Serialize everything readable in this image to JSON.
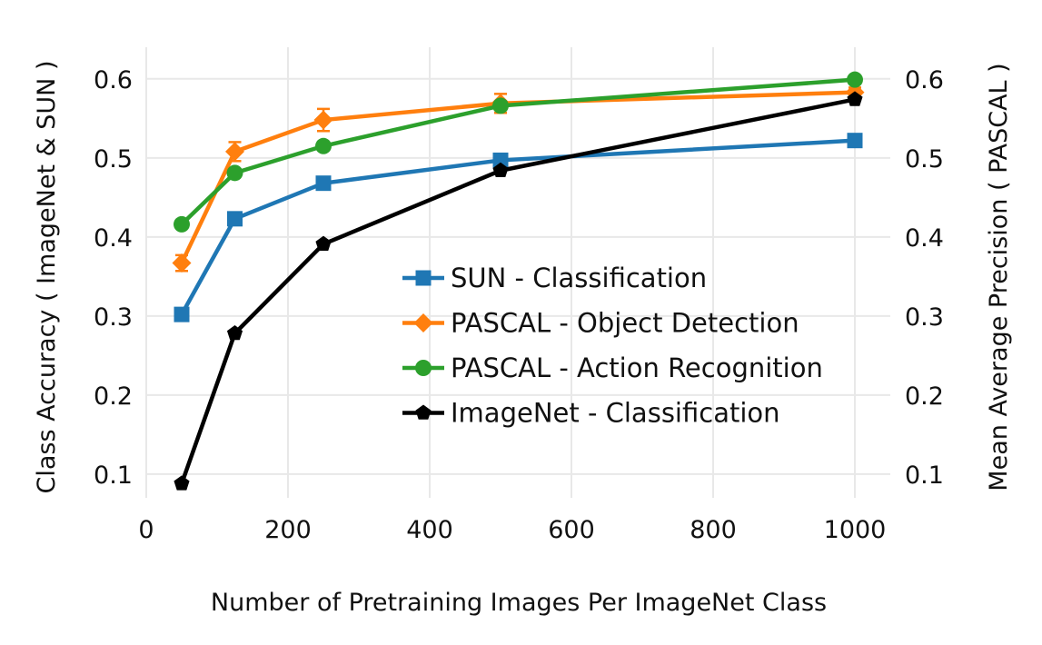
{
  "chart_data": {
    "type": "line",
    "xlabel": "Number of Pretraining Images Per ImageNet Class",
    "ylabel_left": "Class Accuracy ( ImageNet & SUN )",
    "ylabel_right": "Mean Average Precision ( PASCAL )",
    "xlim": [
      0,
      1050
    ],
    "ylim": [
      0.07,
      0.64
    ],
    "xticks": [
      0,
      200,
      400,
      600,
      800,
      1000
    ],
    "yticks": [
      0.1,
      0.2,
      0.3,
      0.4,
      0.5,
      0.6
    ],
    "xtick_labels": [
      "0",
      "200",
      "400",
      "600",
      "800",
      "1000"
    ],
    "ytick_labels": [
      "0.1",
      "0.2",
      "0.3",
      "0.4",
      "0.5",
      "0.6"
    ],
    "grid": true,
    "legend_position": "center-right",
    "series": [
      {
        "name": "SUN - Classification",
        "color": "#1f77b4",
        "marker": "square",
        "x": [
          50,
          125,
          250,
          500,
          1000
        ],
        "values": [
          0.302,
          0.423,
          0.468,
          0.497,
          0.522
        ]
      },
      {
        "name": "PASCAL - Object Detection",
        "color": "#ff7f0e",
        "marker": "diamond",
        "x": [
          50,
          125,
          250,
          500,
          1000
        ],
        "values": [
          0.367,
          0.508,
          0.548,
          0.569,
          0.583
        ],
        "errors": [
          0.01,
          0.012,
          0.014,
          0.012,
          0.006
        ]
      },
      {
        "name": "PASCAL - Action Recognition",
        "color": "#2ca02c",
        "marker": "circle",
        "x": [
          50,
          125,
          250,
          500,
          1000
        ],
        "values": [
          0.416,
          0.481,
          0.515,
          0.566,
          0.599
        ]
      },
      {
        "name": "ImageNet - Classification",
        "color": "#000000",
        "marker": "pentagon",
        "x": [
          50,
          125,
          250,
          500,
          1000
        ],
        "values": [
          0.088,
          0.278,
          0.391,
          0.484,
          0.574
        ]
      }
    ]
  }
}
